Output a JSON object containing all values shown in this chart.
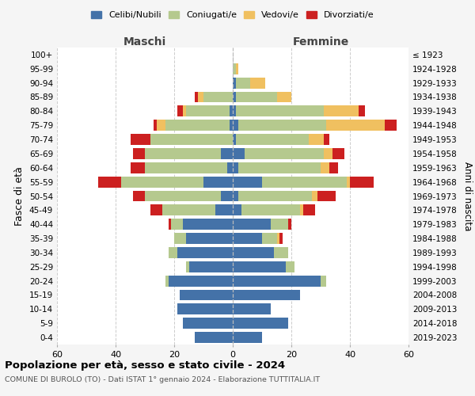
{
  "age_groups_bottom_to_top": [
    "0-4",
    "5-9",
    "10-14",
    "15-19",
    "20-24",
    "25-29",
    "30-34",
    "35-39",
    "40-44",
    "45-49",
    "50-54",
    "55-59",
    "60-64",
    "65-69",
    "70-74",
    "75-79",
    "80-84",
    "85-89",
    "90-94",
    "95-99",
    "100+"
  ],
  "birth_years_bottom_to_top": [
    "2019-2023",
    "2014-2018",
    "2009-2013",
    "2004-2008",
    "1999-2003",
    "1994-1998",
    "1989-1993",
    "1984-1988",
    "1979-1983",
    "1974-1978",
    "1969-1973",
    "1964-1968",
    "1959-1963",
    "1954-1958",
    "1949-1953",
    "1944-1948",
    "1939-1943",
    "1934-1938",
    "1929-1933",
    "1924-1928",
    "≤ 1923"
  ],
  "colors": {
    "celibi": "#4472a8",
    "coniugati": "#b5c98e",
    "vedovi": "#f0c060",
    "divorziati": "#cc2020"
  },
  "maschi": {
    "celibi": [
      13,
      17,
      19,
      18,
      22,
      15,
      19,
      16,
      17,
      6,
      4,
      10,
      2,
      4,
      0,
      1,
      1,
      0,
      0,
      0,
      0
    ],
    "coniugati": [
      0,
      0,
      0,
      0,
      1,
      1,
      3,
      4,
      4,
      18,
      26,
      28,
      28,
      26,
      28,
      22,
      15,
      10,
      0,
      0,
      0
    ],
    "vedovi": [
      0,
      0,
      0,
      0,
      0,
      0,
      0,
      0,
      0,
      0,
      0,
      0,
      0,
      0,
      0,
      3,
      1,
      2,
      0,
      0,
      0
    ],
    "divorziati": [
      0,
      0,
      0,
      0,
      0,
      0,
      0,
      0,
      1,
      4,
      4,
      8,
      5,
      4,
      7,
      1,
      2,
      1,
      0,
      0,
      0
    ]
  },
  "femmine": {
    "celibi": [
      10,
      19,
      13,
      23,
      30,
      18,
      14,
      10,
      13,
      3,
      2,
      10,
      2,
      4,
      1,
      2,
      1,
      1,
      1,
      0,
      0
    ],
    "coniugati": [
      0,
      0,
      0,
      0,
      2,
      3,
      5,
      5,
      6,
      20,
      25,
      29,
      28,
      27,
      25,
      30,
      30,
      14,
      5,
      1,
      0
    ],
    "vedovi": [
      0,
      0,
      0,
      0,
      0,
      0,
      0,
      1,
      0,
      1,
      2,
      1,
      3,
      3,
      5,
      20,
      12,
      5,
      5,
      1,
      0
    ],
    "divorziati": [
      0,
      0,
      0,
      0,
      0,
      0,
      0,
      1,
      1,
      4,
      6,
      8,
      3,
      4,
      2,
      4,
      2,
      0,
      0,
      0,
      0
    ]
  },
  "xlim": 60,
  "title": "Popolazione per età, sesso e stato civile - 2024",
  "subtitle": "COMUNE DI BUROLO (TO) - Dati ISTAT 1° gennaio 2024 - Elaborazione TUTTITALIA.IT",
  "xlabel_left": "Maschi",
  "xlabel_right": "Femmine",
  "ylabel_left": "Fasce di età",
  "ylabel_right": "Anni di nascita",
  "legend_labels": [
    "Celibi/Nubili",
    "Coniugati/e",
    "Vedovi/e",
    "Divorziati/e"
  ],
  "bg_color": "#f5f5f5",
  "plot_bg_color": "#ffffff"
}
